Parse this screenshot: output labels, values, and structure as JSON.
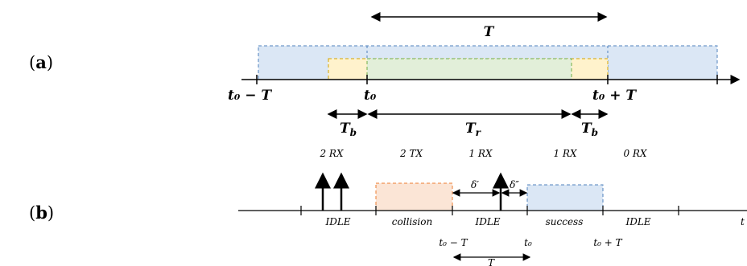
{
  "panel_a": {
    "label_open": "(",
    "label_letter": "a",
    "label_close": ")",
    "period_T": "T",
    "tick_left": "t₀ − T",
    "tick_mid": "t₀",
    "tick_right": "t₀ + T",
    "tb_left": "T",
    "tb_left_sub": "b",
    "tr": "T",
    "tr_sub": "r",
    "tb_right": "T",
    "tb_right_sub": "b",
    "colors": {
      "outer_fill": "#dbe7f5",
      "outer_border": "#4f81bd",
      "buffer_fill": "#fff2cc",
      "buffer_border": "#d6a400",
      "inner_fill": "#e2efd9",
      "inner_border": "#70ad47"
    }
  },
  "panel_b": {
    "label_open": "(",
    "label_letter": "b",
    "label_close": ")",
    "rx_labels": [
      "2 RX",
      "2 TX",
      "1 RX",
      "1 RX",
      "0 RX"
    ],
    "state_labels": [
      "IDLE",
      "collision",
      "IDLE",
      "success",
      "IDLE"
    ],
    "axis_end_label": "t",
    "delta1": "δ′",
    "delta2": "δ″",
    "tick_left": "t₀ − T",
    "tick_mid": "t₀",
    "tick_right": "t₀ + T",
    "period_T": "T",
    "colors": {
      "collision_fill": "#fbe5d6",
      "collision_border": "#ed7d31",
      "success_fill": "#dbe7f5",
      "success_border": "#4f81bd"
    }
  }
}
